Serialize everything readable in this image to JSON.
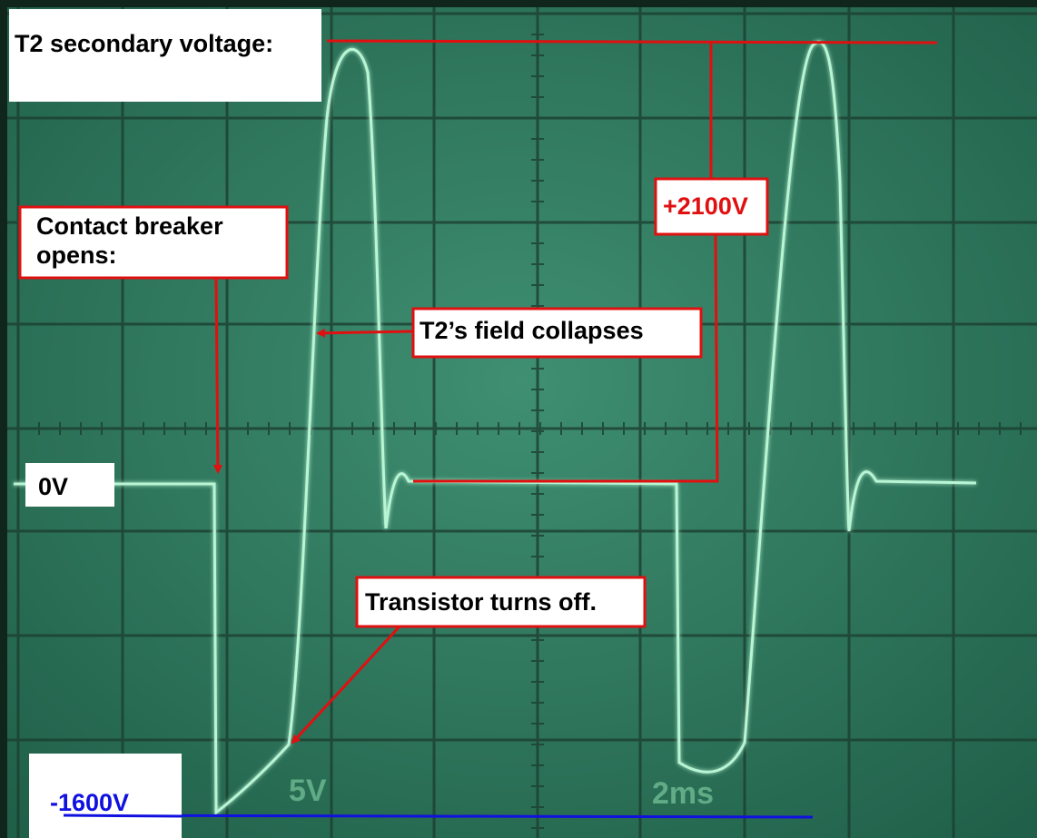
{
  "annotations": {
    "secondary": "T2 secondary voltage:",
    "peak": "+2100V",
    "breaker": "Contact breaker opens:",
    "collapse": "T2’s field collapses",
    "zero": "0V",
    "transistor": "Transistor turns off.",
    "negative": "-1600V"
  },
  "scope": {
    "volts": "5V",
    "time": "2ms"
  }
}
